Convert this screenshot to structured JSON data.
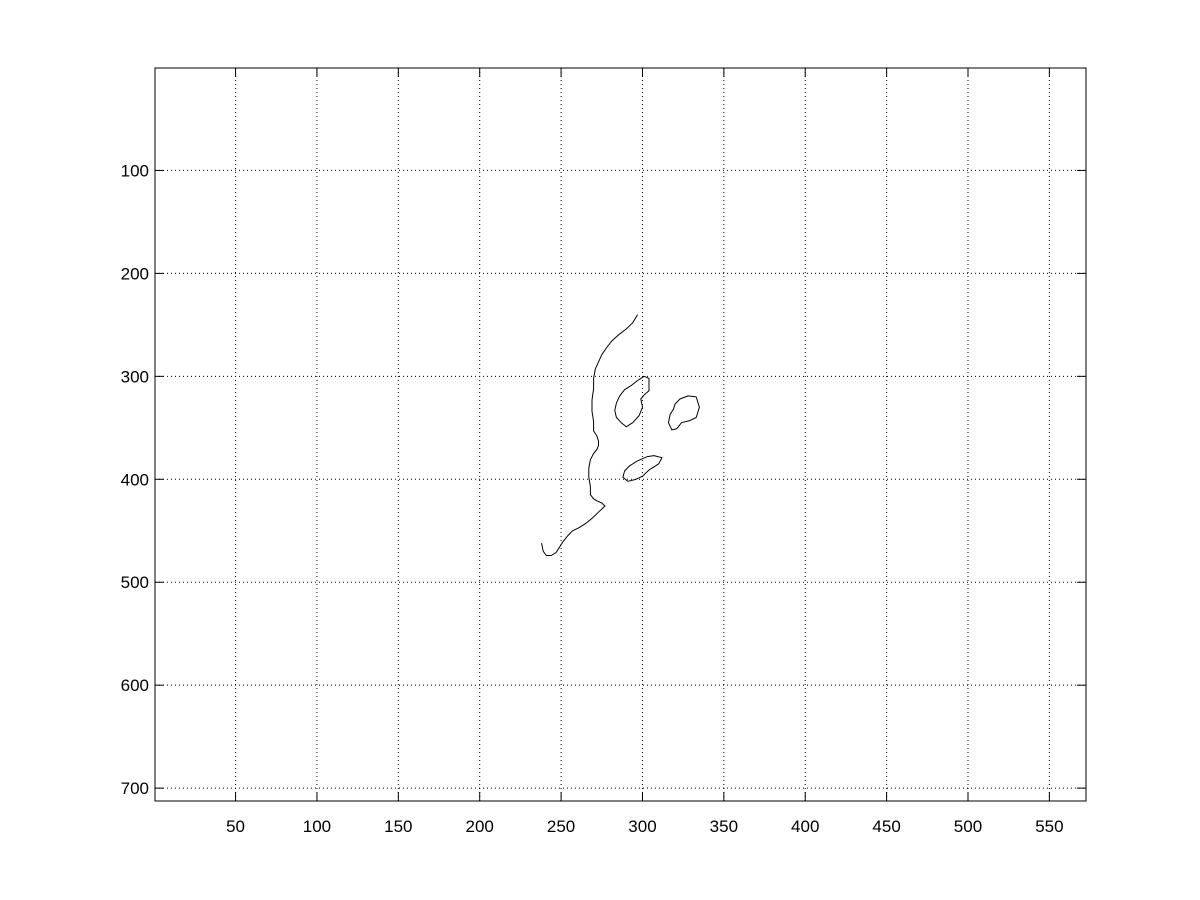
{
  "chart_data": {
    "type": "line",
    "title": "",
    "xlabel": "",
    "ylabel": "",
    "xlim": [
      0.5,
      572.5
    ],
    "ylim": [
      0.5,
      712.5
    ],
    "y_reversed": true,
    "grid": true,
    "grid_style": "dotted",
    "x_ticks": [
      50,
      100,
      150,
      200,
      250,
      300,
      350,
      400,
      450,
      500,
      550
    ],
    "x_tick_labels": [
      "50",
      "100",
      "150",
      "200",
      "250",
      "300",
      "350",
      "400",
      "450",
      "500",
      "550"
    ],
    "y_ticks": [
      100,
      200,
      300,
      400,
      500,
      600,
      700
    ],
    "y_tick_labels": [
      "100",
      "200",
      "300",
      "400",
      "500",
      "600",
      "700"
    ],
    "line_color": "#000000",
    "series": [
      {
        "x": [
          297,
          294,
          290,
          285,
          281,
          278,
          275,
          273,
          271,
          270,
          270,
          269,
          269,
          270,
          270,
          272,
          273,
          273,
          272,
          270,
          268,
          267,
          267,
          268,
          268,
          270,
          272,
          275,
          277,
          273,
          269,
          265,
          261,
          257,
          254,
          251,
          249,
          247,
          244,
          241,
          239,
          238
        ],
        "y": [
          240,
          248,
          254,
          260,
          266,
          272,
          279,
          286,
          293,
          302,
          312,
          323,
          334,
          344,
          353,
          358,
          363,
          367,
          371,
          375,
          381,
          389,
          398,
          407,
          415,
          419,
          421,
          423,
          426,
          432,
          438,
          443,
          447,
          450,
          455,
          461,
          466,
          471,
          474,
          474,
          470,
          462
        ]
      },
      {
        "x": [
          301,
          297,
          293,
          289,
          286,
          284,
          283,
          284,
          287,
          290,
          294,
          298,
          300,
          299,
          301,
          304,
          304,
          301
        ],
        "y": [
          300,
          304,
          309,
          313,
          319,
          326,
          333,
          340,
          345,
          349,
          345,
          338,
          330,
          322,
          318,
          314,
          302,
          300
        ]
      },
      {
        "x": [
          333,
          328,
          323,
          320,
          319,
          317,
          316,
          318,
          321,
          324,
          329,
          333,
          335,
          333
        ],
        "y": [
          320,
          319,
          322,
          327,
          332,
          337,
          345,
          352,
          351,
          345,
          343,
          340,
          330,
          320
        ]
      },
      {
        "x": [
          303,
          297,
          292,
          289,
          288,
          291,
          296,
          300,
          304,
          307,
          310,
          312,
          307,
          303
        ],
        "y": [
          378,
          382,
          387,
          392,
          398,
          402,
          400,
          397,
          391,
          388,
          385,
          379,
          377,
          378
        ]
      }
    ]
  }
}
